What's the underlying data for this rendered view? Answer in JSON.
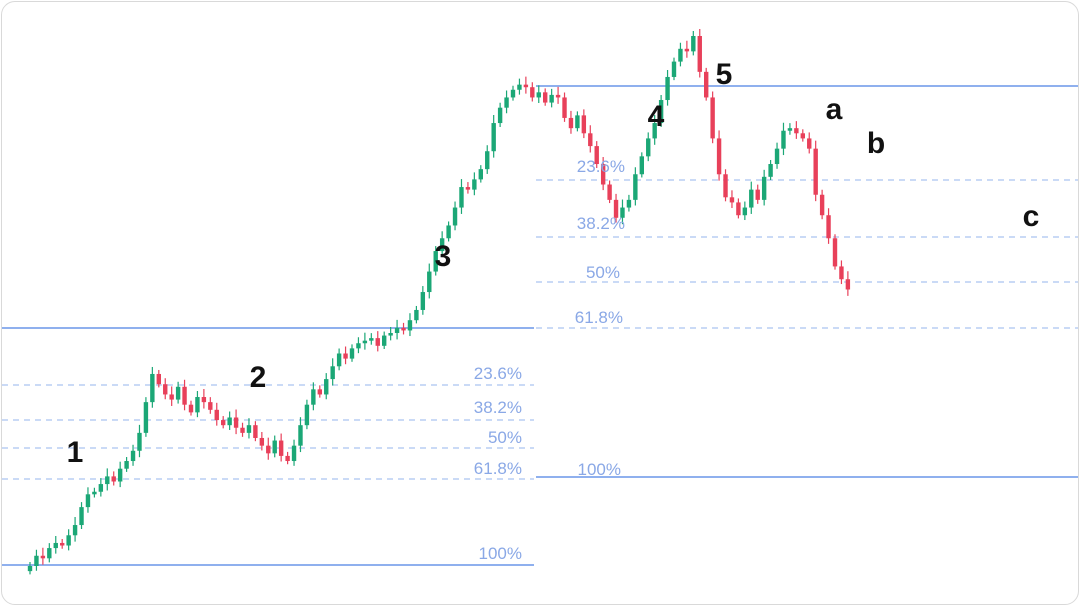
{
  "colors": {
    "up": "#1ba776",
    "down": "#e8405a",
    "solid_line": "#8fb0ee",
    "dashed_line": "#b9cdf3",
    "label": "#8aa8e6"
  },
  "chart_data": {
    "type": "candlestick",
    "title": "",
    "xlabel": "",
    "ylabel": "",
    "ylim": [
      0,
      100
    ],
    "grid": false,
    "legend": "none",
    "retracement_1": {
      "top": 100,
      "bottom": 0,
      "levels": [
        {
          "label": "23.6%",
          "value": 76.4
        },
        {
          "label": "38.2%",
          "value": 61.8
        },
        {
          "label": "50%",
          "value": 50
        },
        {
          "label": "61.8%",
          "value": 38.2
        },
        {
          "label": "100%",
          "value": 0
        }
      ]
    },
    "retracement_2": {
      "top": 100,
      "bottom": 0,
      "levels": [
        {
          "label": "23.6%",
          "value": 76.4
        },
        {
          "label": "38.2%",
          "value": 61.8
        },
        {
          "label": "50%",
          "value": 50
        },
        {
          "label": "61.8%",
          "value": 38.2
        },
        {
          "label": "100%",
          "value": 0
        }
      ]
    },
    "wave_labels": [
      {
        "text": "1",
        "at_candle": 9
      },
      {
        "text": "2",
        "at_candle": 27
      },
      {
        "text": "3",
        "at_candle": 50
      },
      {
        "text": "4",
        "at_candle": 74
      },
      {
        "text": "5",
        "at_candle": 83
      },
      {
        "text": "a",
        "at_candle": 96
      },
      {
        "text": "b",
        "at_candle": 104
      },
      {
        "text": "c",
        "at_candle": 121
      }
    ],
    "closes": [
      3,
      7,
      6,
      10,
      12,
      11,
      15,
      19,
      26,
      31,
      32,
      35,
      38,
      36,
      41,
      44,
      48,
      55,
      67,
      78,
      74,
      70,
      68,
      73,
      66,
      63,
      69,
      67,
      64,
      60,
      58,
      61,
      57,
      55,
      58,
      53,
      50,
      47,
      52,
      46,
      44,
      50,
      58,
      66,
      72,
      70,
      76,
      81,
      86,
      84,
      88,
      90,
      91,
      92,
      89,
      93,
      94,
      96,
      95,
      99,
      103,
      110,
      118,
      126,
      131,
      136,
      143,
      151,
      150,
      154,
      158,
      165,
      176,
      182,
      186,
      189,
      191,
      190,
      186,
      188,
      184,
      187,
      186,
      178,
      174,
      179,
      172,
      167,
      160,
      152,
      146,
      139,
      143,
      146,
      156,
      163,
      170,
      176,
      185,
      194,
      200,
      205,
      204,
      210,
      196,
      186,
      170,
      156,
      147,
      145,
      140,
      143,
      150,
      146,
      155,
      160,
      166,
      173,
      174,
      172,
      170,
      166,
      148,
      140,
      131,
      120,
      115,
      111
    ]
  }
}
